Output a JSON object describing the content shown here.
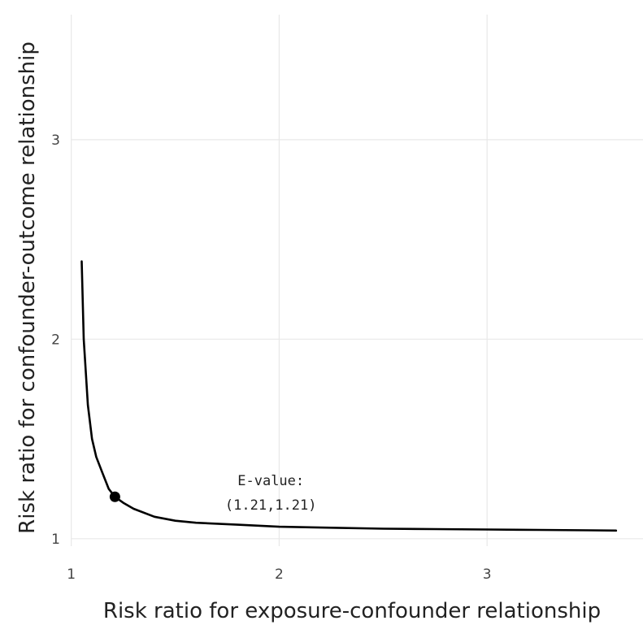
{
  "chart_data": {
    "type": "line",
    "xlabel": "Risk ratio for exposure-confounder relationship",
    "ylabel": "Risk ratio for confounder-outcome relationship",
    "xlim": [
      0.97,
      3.75
    ],
    "ylim": [
      0.93,
      3.7
    ],
    "x_ticks": [
      1,
      2,
      3
    ],
    "y_ticks": [
      1,
      2,
      3
    ],
    "grid": true,
    "legend": "none",
    "line_color": "#000000",
    "series": [
      {
        "x": [
          1.05,
          1.06,
          1.08,
          1.1,
          1.12,
          1.15,
          1.18,
          1.21,
          1.25,
          1.3,
          1.4,
          1.5,
          1.6,
          1.8,
          2.0,
          2.25,
          2.5,
          2.75,
          3.0,
          3.25,
          3.5,
          3.62
        ],
        "y": [
          2.39,
          2.0,
          1.67,
          1.5,
          1.41,
          1.33,
          1.25,
          1.21,
          1.18,
          1.15,
          1.11,
          1.09,
          1.08,
          1.07,
          1.06,
          1.055,
          1.05,
          1.048,
          1.046,
          1.044,
          1.042,
          1.041
        ]
      }
    ],
    "point": {
      "x": 1.21,
      "y": 1.21
    },
    "annotation": {
      "line1": "E-value:",
      "line2": "(1.21,1.21)"
    }
  }
}
